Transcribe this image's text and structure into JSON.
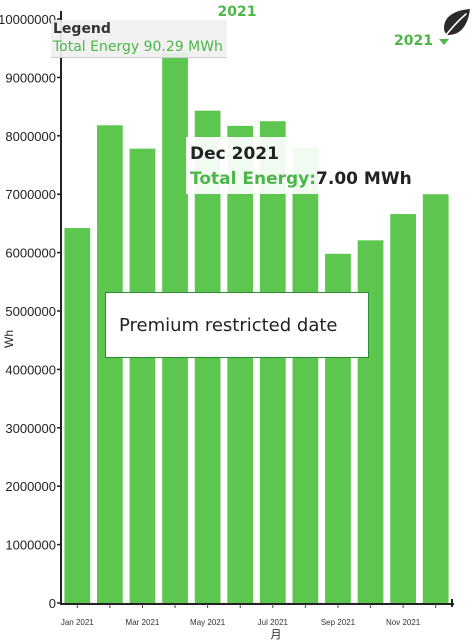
{
  "header": {
    "year_title": "2021",
    "year_selector": {
      "label": "2021"
    },
    "leaf_icon": "leaf-icon"
  },
  "legend": {
    "title": "Legend",
    "entry": "Total Energy 90.29 MWh"
  },
  "tooltip": {
    "date": "Dec 2021",
    "key": "Total Energy:",
    "value": "7.00 MWh"
  },
  "notice": {
    "text": "Premium restricted date"
  },
  "colors": {
    "bar": "#5cc64f",
    "accent": "#4cb648"
  },
  "chart_data": {
    "type": "bar",
    "categories": [
      "Jan 2021",
      "Feb 2021",
      "Mar 2021",
      "Apr 2021",
      "May 2021",
      "Jun 2021",
      "Jul 2021",
      "Aug 2021",
      "Sep 2021",
      "Oct 2021",
      "Nov 2021",
      "Dec 2021"
    ],
    "x_tick_labels": [
      "Jan 2021",
      "Mar 2021",
      "May 2021",
      "Jul 2021",
      "Sep 2021",
      "Nov 2021"
    ],
    "series": [
      {
        "name": "Total Energy",
        "values": [
          6420000,
          8180000,
          7780000,
          9420000,
          8430000,
          8170000,
          8250000,
          7800000,
          5980000,
          6210000,
          6660000,
          7000000
        ]
      }
    ],
    "xlabel": "月",
    "ylabel": "Wh",
    "ylim": [
      0,
      10000000
    ],
    "yticks": [
      "0",
      "1000000",
      "2000000",
      "3000000",
      "4000000",
      "5000000",
      "6000000",
      "7000000",
      "8000000",
      "9000000",
      "10000000"
    ],
    "grid": false,
    "legend": "top-left"
  }
}
